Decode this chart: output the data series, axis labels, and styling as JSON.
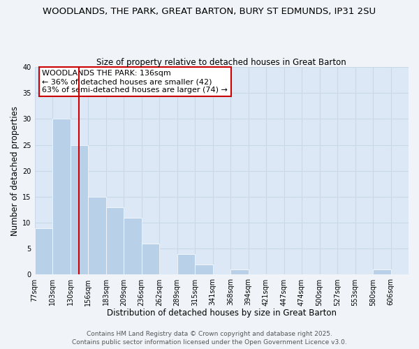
{
  "title": "WOODLANDS, THE PARK, GREAT BARTON, BURY ST EDMUNDS, IP31 2SU",
  "subtitle": "Size of property relative to detached houses in Great Barton",
  "xlabel": "Distribution of detached houses by size in Great Barton",
  "ylabel": "Number of detached properties",
  "fig_bg_color": "#f0f4f8",
  "plot_bg_color": "#dce8f5",
  "bar_color": "#b8d0e8",
  "bar_edge_color": "#ffffff",
  "grid_color": "#c8d8e8",
  "bin_labels": [
    "77sqm",
    "103sqm",
    "130sqm",
    "156sqm",
    "183sqm",
    "209sqm",
    "236sqm",
    "262sqm",
    "289sqm",
    "315sqm",
    "341sqm",
    "368sqm",
    "394sqm",
    "421sqm",
    "447sqm",
    "474sqm",
    "500sqm",
    "527sqm",
    "553sqm",
    "580sqm",
    "606sqm"
  ],
  "bar_heights": [
    9,
    30,
    25,
    15,
    13,
    11,
    6,
    0,
    4,
    2,
    0,
    1,
    0,
    0,
    0,
    0,
    0,
    0,
    0,
    1,
    0
  ],
  "ylim": [
    0,
    40
  ],
  "yticks": [
    0,
    5,
    10,
    15,
    20,
    25,
    30,
    35,
    40
  ],
  "vline_x": 2.5,
  "vline_color": "#cc0000",
  "annotation_text": "WOODLANDS THE PARK: 136sqm\n← 36% of detached houses are smaller (42)\n63% of semi-detached houses are larger (74) →",
  "annotation_box_color": "#ffffff",
  "annotation_box_edge": "#cc0000",
  "footer_line1": "Contains HM Land Registry data © Crown copyright and database right 2025.",
  "footer_line2": "Contains public sector information licensed under the Open Government Licence v3.0.",
  "title_fontsize": 9.5,
  "subtitle_fontsize": 8.5,
  "axis_label_fontsize": 8.5,
  "tick_fontsize": 7,
  "annotation_fontsize": 8,
  "footer_fontsize": 6.5
}
